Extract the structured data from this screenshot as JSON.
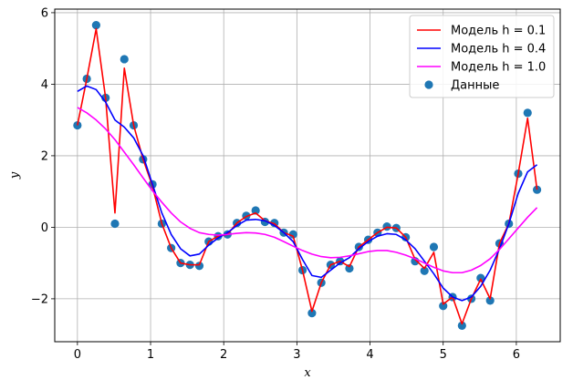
{
  "chart_data": {
    "type": "line",
    "xlabel": "x",
    "ylabel": "y",
    "xlim": [
      -0.31,
      6.6
    ],
    "ylim": [
      -3.2,
      6.1
    ],
    "xticks": [
      0,
      1,
      2,
      3,
      4,
      5,
      6
    ],
    "yticks": [
      -2,
      0,
      2,
      4,
      6
    ],
    "tick_labels_x": [
      "0",
      "1",
      "2",
      "3",
      "4",
      "5",
      "6"
    ],
    "tick_labels_y": [
      "−2",
      "0",
      "2",
      "4",
      "6"
    ],
    "grid": true,
    "legend_position": "top-right",
    "x": [
      0.0,
      0.128,
      0.256,
      0.385,
      0.513,
      0.641,
      0.769,
      0.898,
      1.026,
      1.154,
      1.282,
      1.41,
      1.539,
      1.667,
      1.795,
      1.923,
      2.052,
      2.18,
      2.308,
      2.436,
      2.564,
      2.693,
      2.821,
      2.949,
      3.077,
      3.206,
      3.334,
      3.462,
      3.59,
      3.718,
      3.847,
      3.975,
      4.103,
      4.231,
      4.359,
      4.488,
      4.616,
      4.744,
      4.872,
      5.0,
      5.129,
      5.257,
      5.385,
      5.513,
      5.642,
      5.77,
      5.898,
      6.026,
      6.154,
      6.283
    ],
    "scatter": {
      "name": "Данные",
      "color": "#1f77b4",
      "y": [
        2.85,
        4.15,
        5.65,
        3.62,
        0.1,
        4.7,
        2.85,
        1.9,
        1.2,
        0.1,
        -0.58,
        -1.0,
        -1.05,
        -1.08,
        -0.4,
        -0.25,
        -0.2,
        0.12,
        0.32,
        0.47,
        0.15,
        0.12,
        -0.15,
        -0.2,
        -1.2,
        -2.4,
        -1.55,
        -1.05,
        -0.95,
        -1.15,
        -0.55,
        -0.35,
        -0.15,
        0.02,
        -0.02,
        -0.28,
        -0.95,
        -1.22,
        -0.55,
        -2.2,
        -1.95,
        -2.75,
        -2.0,
        -1.42,
        -2.05,
        -0.45,
        0.1,
        1.5,
        3.2,
        1.05
      ]
    },
    "series": [
      {
        "name": "Модель h = 0.1",
        "color": "#ff0000",
        "y": [
          2.85,
          4.15,
          5.55,
          3.62,
          0.4,
          4.45,
          2.85,
          1.9,
          1.15,
          0.1,
          -0.58,
          -1.0,
          -1.05,
          -1.05,
          -0.4,
          -0.25,
          -0.2,
          0.12,
          0.3,
          0.4,
          0.18,
          0.1,
          -0.15,
          -0.25,
          -1.2,
          -2.35,
          -1.55,
          -1.05,
          -0.95,
          -1.1,
          -0.55,
          -0.35,
          -0.15,
          0.0,
          -0.02,
          -0.28,
          -0.9,
          -1.15,
          -0.7,
          -2.15,
          -1.95,
          -2.7,
          -2.0,
          -1.45,
          -2.0,
          -0.45,
          0.1,
          1.5,
          3.05,
          1.05
        ]
      },
      {
        "name": "Модель h = 0.4",
        "color": "#0000ff",
        "y": [
          3.8,
          3.95,
          3.85,
          3.5,
          3.0,
          2.8,
          2.5,
          2.0,
          1.2,
          0.4,
          -0.2,
          -0.6,
          -0.8,
          -0.75,
          -0.5,
          -0.3,
          -0.15,
          0.05,
          0.2,
          0.22,
          0.18,
          0.05,
          -0.15,
          -0.4,
          -0.9,
          -1.35,
          -1.4,
          -1.2,
          -1.0,
          -0.85,
          -0.6,
          -0.4,
          -0.25,
          -0.18,
          -0.2,
          -0.35,
          -0.6,
          -0.95,
          -1.3,
          -1.7,
          -1.95,
          -2.05,
          -1.95,
          -1.65,
          -1.2,
          -0.6,
          0.1,
          0.95,
          1.55,
          1.75
        ]
      },
      {
        "name": "Модель h = 1.0",
        "color": "#ff00ff",
        "y": [
          3.35,
          3.2,
          3.0,
          2.75,
          2.45,
          2.1,
          1.75,
          1.38,
          1.02,
          0.7,
          0.4,
          0.15,
          -0.03,
          -0.15,
          -0.2,
          -0.22,
          -0.2,
          -0.17,
          -0.15,
          -0.16,
          -0.2,
          -0.28,
          -0.4,
          -0.53,
          -0.65,
          -0.75,
          -0.82,
          -0.85,
          -0.84,
          -0.8,
          -0.74,
          -0.68,
          -0.65,
          -0.65,
          -0.7,
          -0.78,
          -0.88,
          -1.0,
          -1.12,
          -1.22,
          -1.27,
          -1.27,
          -1.2,
          -1.07,
          -0.88,
          -0.62,
          -0.32,
          -0.02,
          0.28,
          0.55
        ]
      }
    ]
  }
}
